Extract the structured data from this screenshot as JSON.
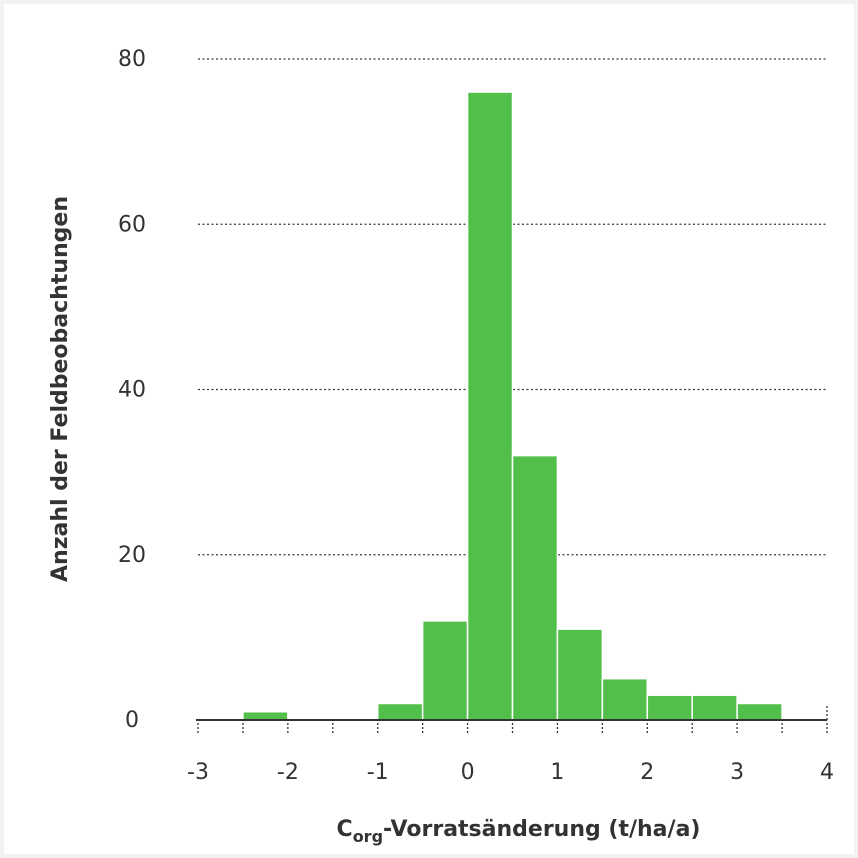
{
  "chart_data": {
    "type": "bar",
    "title": "",
    "ylabel": "Anzahl der Feldbeobachtungen",
    "xlabel_main": "C",
    "xlabel_sub": "org",
    "xlabel_rest": "-Vorratsänderung (t/ha/a)",
    "bin_edges": [
      -3,
      -2.5,
      -2,
      -1.5,
      -1,
      -0.5,
      0,
      0.5,
      1,
      1.5,
      2,
      2.5,
      3,
      3.5,
      4
    ],
    "values": [
      0,
      1,
      0,
      0,
      2,
      12,
      76,
      32,
      11,
      5,
      3,
      3,
      2,
      0
    ],
    "xlim": [
      -3,
      4
    ],
    "ylim": [
      0,
      80
    ],
    "xticks": [
      {
        "value": -3,
        "label": "-3"
      },
      {
        "value": -2,
        "label": "-2"
      },
      {
        "value": -1,
        "label": "-1"
      },
      {
        "value": 0,
        "label": "0"
      },
      {
        "value": 1,
        "label": "1"
      },
      {
        "value": 2,
        "label": "2"
      },
      {
        "value": 3,
        "label": "3"
      },
      {
        "value": 4,
        "label": "4"
      }
    ],
    "yticks": [
      {
        "value": 0,
        "label": "0"
      },
      {
        "value": 20,
        "label": "20"
      },
      {
        "value": 40,
        "label": "40"
      },
      {
        "value": 60,
        "label": "60"
      },
      {
        "value": 80,
        "label": "80"
      }
    ],
    "grid": true,
    "bar_color": "#52bf4a"
  }
}
